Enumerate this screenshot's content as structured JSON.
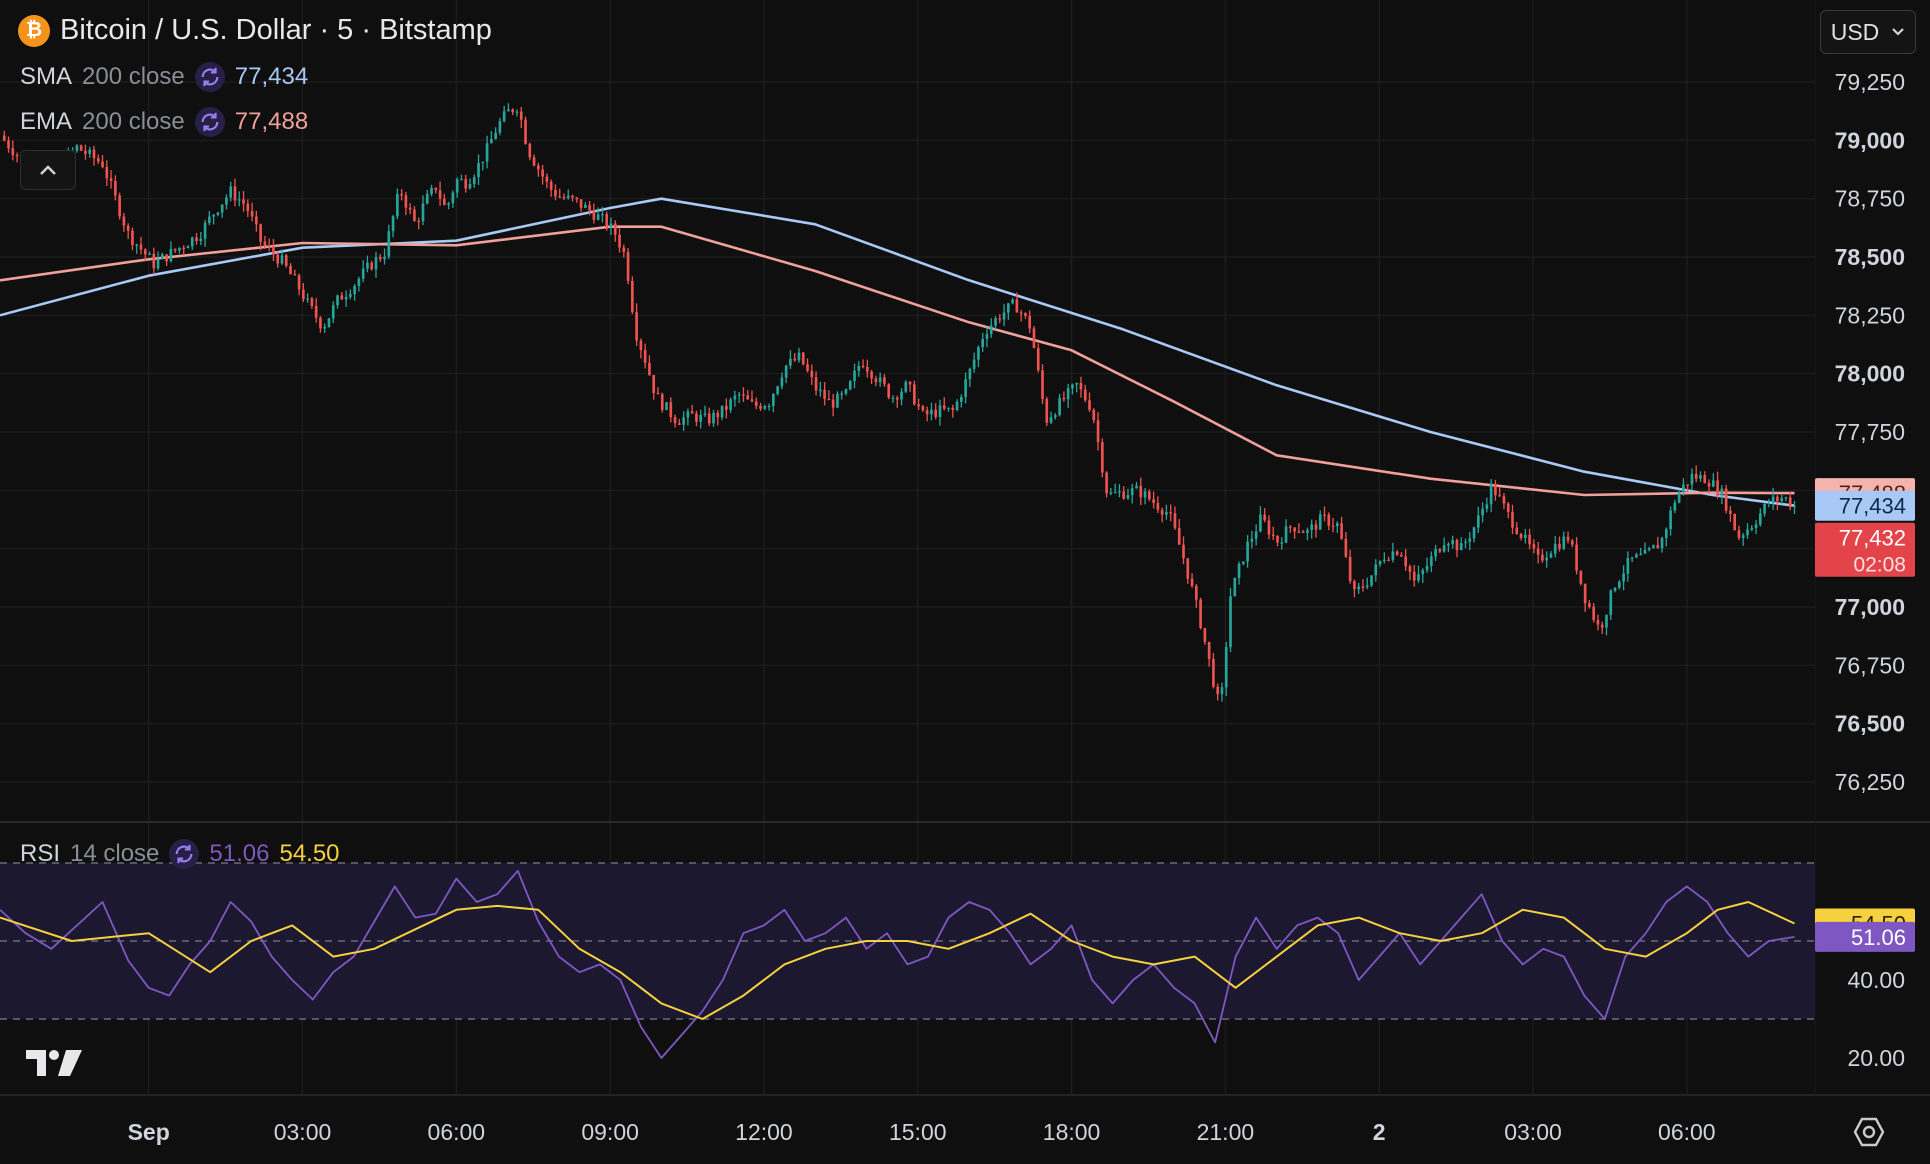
{
  "header": {
    "title": "Bitcoin / U.S. Dollar · 5 · Bitstamp",
    "coin_glyph": "₿",
    "currency_select": "USD"
  },
  "indicators": {
    "sma": {
      "name": "SMA",
      "params": "200 close",
      "value": "77,434",
      "color": "#a8c8f5"
    },
    "ema": {
      "name": "EMA",
      "params": "200 close",
      "value": "77,488",
      "color": "#f0a09a"
    },
    "rsi": {
      "name": "RSI",
      "params": "14 close",
      "value": "51.06",
      "ma_value": "54.50",
      "color": "#7e57c2",
      "ma_color": "#f5d03f"
    }
  },
  "price_tags": {
    "ema": "77,488",
    "sma": "77,434",
    "last": "77,432",
    "countdown": "02:08"
  },
  "rsi_tags": {
    "ma": "54.50",
    "rsi": "51.06"
  },
  "colors": {
    "up": "#26a69a",
    "down": "#ef5350",
    "background": "#0f0f0f",
    "grid": "#1f1f22",
    "rsi_band": "#1c1830"
  },
  "icons": [
    "bitcoin-icon",
    "cycle-icon",
    "chevron-down-icon",
    "chevron-up-icon",
    "tradingview-logo-icon",
    "settings-icon"
  ],
  "chart_data": [
    {
      "type": "candlestick",
      "title": "Bitcoin / U.S. Dollar · 5 · Bitstamp",
      "y_ticks": [
        "79,250",
        "79,000",
        "78,750",
        "78,500",
        "78,250",
        "78,000",
        "77,750",
        "77,500",
        "77,250",
        "77,000",
        "76,750",
        "76,500",
        "76,250"
      ],
      "ylim": [
        76100,
        79500
      ],
      "x_ticks": [
        "Sep",
        "03:00",
        "06:00",
        "09:00",
        "12:00",
        "15:00",
        "18:00",
        "21:00",
        "2",
        "03:00",
        "06:00"
      ],
      "xlim_hours": [
        -2.9,
        32.5
      ],
      "grid": true,
      "price_path": [
        [
          -2.9,
          79020
        ],
        [
          -2.4,
          78900
        ],
        [
          -1.9,
          78850
        ],
        [
          -1.4,
          78970
        ],
        [
          -0.9,
          78900
        ],
        [
          -0.4,
          78600
        ],
        [
          0.1,
          78470
        ],
        [
          0.6,
          78540
        ],
        [
          1.0,
          78600
        ],
        [
          1.3,
          78700
        ],
        [
          1.6,
          78780
        ],
        [
          1.9,
          78720
        ],
        [
          2.2,
          78560
        ],
        [
          2.6,
          78480
        ],
        [
          2.9,
          78380
        ],
        [
          3.1,
          78300
        ],
        [
          3.4,
          78200
        ],
        [
          3.7,
          78320
        ],
        [
          4.0,
          78380
        ],
        [
          4.3,
          78460
        ],
        [
          4.6,
          78520
        ],
        [
          4.9,
          78790
        ],
        [
          5.2,
          78640
        ],
        [
          5.4,
          78740
        ],
        [
          5.6,
          78800
        ],
        [
          5.8,
          78700
        ],
        [
          6.0,
          78830
        ],
        [
          6.2,
          78820
        ],
        [
          6.4,
          78880
        ],
        [
          6.6,
          78960
        ],
        [
          6.8,
          79060
        ],
        [
          7.0,
          79120
        ],
        [
          7.2,
          79150
        ],
        [
          7.4,
          78960
        ],
        [
          7.6,
          78880
        ],
        [
          7.8,
          78800
        ],
        [
          8.0,
          78760
        ],
        [
          8.3,
          78740
        ],
        [
          8.6,
          78700
        ],
        [
          8.9,
          78650
        ],
        [
          9.1,
          78600
        ],
        [
          9.3,
          78500
        ],
        [
          9.5,
          78180
        ],
        [
          9.7,
          78050
        ],
        [
          9.9,
          77900
        ],
        [
          10.1,
          77850
        ],
        [
          10.3,
          77800
        ],
        [
          10.6,
          77820
        ],
        [
          10.9,
          77800
        ],
        [
          11.2,
          77840
        ],
        [
          11.5,
          77910
        ],
        [
          11.8,
          77860
        ],
        [
          12.1,
          77880
        ],
        [
          12.4,
          78030
        ],
        [
          12.7,
          78070
        ],
        [
          13.0,
          77940
        ],
        [
          13.3,
          77870
        ],
        [
          13.6,
          77910
        ],
        [
          13.9,
          78060
        ],
        [
          14.2,
          77980
        ],
        [
          14.5,
          77900
        ],
        [
          14.8,
          77950
        ],
        [
          15.1,
          77820
        ],
        [
          15.4,
          77840
        ],
        [
          15.7,
          77840
        ],
        [
          16.0,
          78000
        ],
        [
          16.3,
          78180
        ],
        [
          16.6,
          78250
        ],
        [
          16.9,
          78300
        ],
        [
          17.2,
          78200
        ],
        [
          17.5,
          77800
        ],
        [
          17.8,
          77880
        ],
        [
          18.1,
          77950
        ],
        [
          18.4,
          77850
        ],
        [
          18.7,
          77480
        ],
        [
          19.0,
          77490
        ],
        [
          19.3,
          77500
        ],
        [
          19.6,
          77450
        ],
        [
          19.9,
          77400
        ],
        [
          20.2,
          77200
        ],
        [
          20.5,
          76950
        ],
        [
          20.7,
          76750
        ],
        [
          20.9,
          76550
        ],
        [
          21.1,
          77050
        ],
        [
          21.4,
          77250
        ],
        [
          21.7,
          77380
        ],
        [
          22.0,
          77280
        ],
        [
          22.3,
          77350
        ],
        [
          22.6,
          77320
        ],
        [
          22.9,
          77380
        ],
        [
          23.2,
          77350
        ],
        [
          23.5,
          77050
        ],
        [
          23.8,
          77120
        ],
        [
          24.1,
          77220
        ],
        [
          24.4,
          77250
        ],
        [
          24.7,
          77100
        ],
        [
          25.0,
          77200
        ],
        [
          25.3,
          77300
        ],
        [
          25.6,
          77250
        ],
        [
          25.9,
          77360
        ],
        [
          26.2,
          77520
        ],
        [
          26.5,
          77400
        ],
        [
          26.8,
          77300
        ],
        [
          27.1,
          77200
        ],
        [
          27.4,
          77260
        ],
        [
          27.7,
          77300
        ],
        [
          28.0,
          77050
        ],
        [
          28.3,
          76900
        ],
        [
          28.6,
          77100
        ],
        [
          28.9,
          77200
        ],
        [
          29.2,
          77220
        ],
        [
          29.5,
          77280
        ],
        [
          29.8,
          77480
        ],
        [
          30.1,
          77560
        ],
        [
          30.4,
          77550
        ],
        [
          30.7,
          77480
        ],
        [
          31.0,
          77300
        ],
        [
          31.3,
          77360
        ],
        [
          31.6,
          77450
        ],
        [
          31.9,
          77470
        ],
        [
          32.1,
          77432
        ]
      ],
      "series": [
        {
          "name": "SMA 200 close",
          "color": "#a8c8f5",
          "values": [
            [
              -2.9,
              78250
            ],
            [
              0,
              78420
            ],
            [
              3,
              78540
            ],
            [
              6,
              78570
            ],
            [
              9,
              78710
            ],
            [
              10,
              78750
            ],
            [
              13,
              78640
            ],
            [
              16,
              78400
            ],
            [
              19,
              78190
            ],
            [
              22,
              77950
            ],
            [
              25,
              77750
            ],
            [
              28,
              77580
            ],
            [
              30.5,
              77480
            ],
            [
              32.1,
              77434
            ]
          ]
        },
        {
          "name": "EMA 200 close",
          "color": "#f0a09a",
          "values": [
            [
              -2.9,
              78400
            ],
            [
              0,
              78490
            ],
            [
              3,
              78560
            ],
            [
              6,
              78550
            ],
            [
              9,
              78630
            ],
            [
              10,
              78630
            ],
            [
              13,
              78440
            ],
            [
              16,
              78220
            ],
            [
              18,
              78100
            ],
            [
              20,
              77880
            ],
            [
              22,
              77650
            ],
            [
              25,
              77550
            ],
            [
              28,
              77480
            ],
            [
              30.5,
              77490
            ],
            [
              32.1,
              77488
            ]
          ]
        }
      ]
    },
    {
      "type": "line",
      "title": "RSI 14 close",
      "y_ticks": [
        "40.00",
        "20.00"
      ],
      "ylim": [
        8,
        78
      ],
      "band": [
        30,
        70
      ],
      "midline": 50,
      "series": [
        {
          "name": "RSI",
          "color": "#7e57c2",
          "values": [
            [
              -2.9,
              58
            ],
            [
              -2.4,
              52
            ],
            [
              -1.9,
              48
            ],
            [
              -1.4,
              54
            ],
            [
              -0.9,
              60
            ],
            [
              -0.4,
              45
            ],
            [
              0,
              38
            ],
            [
              0.4,
              36
            ],
            [
              0.8,
              44
            ],
            [
              1.2,
              50
            ],
            [
              1.6,
              60
            ],
            [
              2.0,
              55
            ],
            [
              2.4,
              46
            ],
            [
              2.8,
              40
            ],
            [
              3.2,
              35
            ],
            [
              3.6,
              42
            ],
            [
              4.0,
              46
            ],
            [
              4.4,
              55
            ],
            [
              4.8,
              64
            ],
            [
              5.2,
              56
            ],
            [
              5.6,
              57
            ],
            [
              6.0,
              66
            ],
            [
              6.4,
              60
            ],
            [
              6.8,
              62
            ],
            [
              7.2,
              68
            ],
            [
              7.6,
              55
            ],
            [
              8.0,
              46
            ],
            [
              8.4,
              42
            ],
            [
              8.8,
              44
            ],
            [
              9.2,
              40
            ],
            [
              9.6,
              28
            ],
            [
              10.0,
              20
            ],
            [
              10.4,
              26
            ],
            [
              10.8,
              32
            ],
            [
              11.2,
              40
            ],
            [
              11.6,
              52
            ],
            [
              12.0,
              54
            ],
            [
              12.4,
              58
            ],
            [
              12.8,
              50
            ],
            [
              13.2,
              52
            ],
            [
              13.6,
              56
            ],
            [
              14.0,
              48
            ],
            [
              14.4,
              52
            ],
            [
              14.8,
              44
            ],
            [
              15.2,
              46
            ],
            [
              15.6,
              56
            ],
            [
              16.0,
              60
            ],
            [
              16.4,
              58
            ],
            [
              16.8,
              52
            ],
            [
              17.2,
              44
            ],
            [
              17.6,
              48
            ],
            [
              18.0,
              54
            ],
            [
              18.4,
              40
            ],
            [
              18.8,
              34
            ],
            [
              19.2,
              40
            ],
            [
              19.6,
              44
            ],
            [
              20.0,
              38
            ],
            [
              20.4,
              34
            ],
            [
              20.8,
              24
            ],
            [
              21.2,
              46
            ],
            [
              21.6,
              56
            ],
            [
              22.0,
              48
            ],
            [
              22.4,
              54
            ],
            [
              22.8,
              56
            ],
            [
              23.2,
              52
            ],
            [
              23.6,
              40
            ],
            [
              24.0,
              46
            ],
            [
              24.4,
              52
            ],
            [
              24.8,
              44
            ],
            [
              25.2,
              50
            ],
            [
              25.6,
              56
            ],
            [
              26.0,
              62
            ],
            [
              26.4,
              50
            ],
            [
              26.8,
              44
            ],
            [
              27.2,
              48
            ],
            [
              27.6,
              46
            ],
            [
              28.0,
              36
            ],
            [
              28.4,
              30
            ],
            [
              28.8,
              46
            ],
            [
              29.2,
              52
            ],
            [
              29.6,
              60
            ],
            [
              30.0,
              64
            ],
            [
              30.4,
              60
            ],
            [
              30.8,
              52
            ],
            [
              31.2,
              46
            ],
            [
              31.6,
              50
            ],
            [
              32.1,
              51.06
            ]
          ]
        },
        {
          "name": "RSI-based MA",
          "color": "#f5d03f",
          "values": [
            [
              -2.9,
              56
            ],
            [
              -1.5,
              50
            ],
            [
              0,
              52
            ],
            [
              1.2,
              42
            ],
            [
              2.0,
              50
            ],
            [
              2.8,
              54
            ],
            [
              3.6,
              46
            ],
            [
              4.4,
              48
            ],
            [
              5.2,
              53
            ],
            [
              6.0,
              58
            ],
            [
              6.8,
              59
            ],
            [
              7.6,
              58
            ],
            [
              8.4,
              48
            ],
            [
              9.2,
              42
            ],
            [
              10.0,
              34
            ],
            [
              10.8,
              30
            ],
            [
              11.6,
              36
            ],
            [
              12.4,
              44
            ],
            [
              13.2,
              48
            ],
            [
              14.0,
              50
            ],
            [
              14.8,
              50
            ],
            [
              15.6,
              48
            ],
            [
              16.4,
              52
            ],
            [
              17.2,
              57
            ],
            [
              18.0,
              50
            ],
            [
              18.8,
              46
            ],
            [
              19.6,
              44
            ],
            [
              20.4,
              46
            ],
            [
              21.2,
              38
            ],
            [
              22.0,
              46
            ],
            [
              22.8,
              54
            ],
            [
              23.6,
              56
            ],
            [
              24.4,
              52
            ],
            [
              25.2,
              50
            ],
            [
              26.0,
              52
            ],
            [
              26.8,
              58
            ],
            [
              27.6,
              56
            ],
            [
              28.4,
              48
            ],
            [
              29.2,
              46
            ],
            [
              30.0,
              52
            ],
            [
              30.6,
              58
            ],
            [
              31.2,
              60
            ],
            [
              32.1,
              54.5
            ]
          ]
        }
      ]
    }
  ]
}
